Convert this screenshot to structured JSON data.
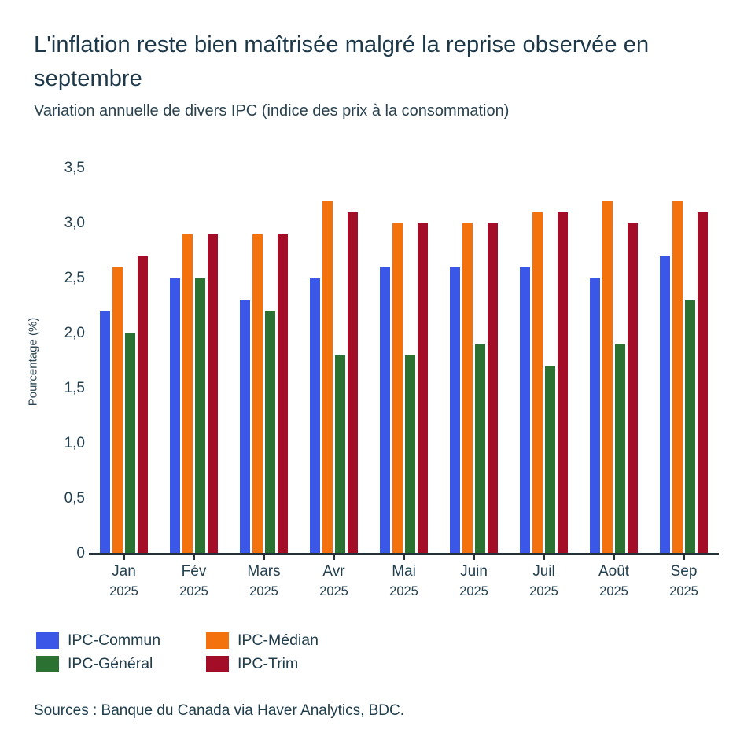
{
  "chart_data": {
    "type": "bar",
    "title": "L'inflation reste bien maîtrisée malgré la reprise observée en septembre",
    "subtitle": "Variation annuelle de divers IPC (indice des prix à la consommation)",
    "xlabel": "",
    "ylabel": "Pourcentage (%)",
    "ylim": [
      0,
      3.5
    ],
    "grid": false,
    "legend_position": "bottom-left",
    "decimal_format": "comma",
    "y_tick_labels": [
      "0",
      "0,5",
      "1,0",
      "1,5",
      "2,0",
      "2,5",
      "3,0",
      "3,5"
    ],
    "categories": [
      "Jan",
      "Fév",
      "Mars",
      "Avr",
      "Mai",
      "Juin",
      "Juil",
      "Août",
      "Sep"
    ],
    "category_year": "2025",
    "series": [
      {
        "name": "IPC-Commun",
        "color": "#3a57e8",
        "values": [
          2.2,
          2.5,
          2.3,
          2.5,
          2.6,
          2.6,
          2.6,
          2.5,
          2.7
        ]
      },
      {
        "name": "IPC-Médian",
        "color": "#f4720e",
        "values": [
          2.6,
          2.9,
          2.9,
          3.2,
          3.0,
          3.0,
          3.1,
          3.2,
          3.2
        ]
      },
      {
        "name": "IPC-Général",
        "color": "#2b7132",
        "values": [
          2.0,
          2.5,
          2.2,
          1.8,
          1.8,
          1.9,
          1.7,
          1.9,
          2.3
        ]
      },
      {
        "name": "IPC-Trim",
        "color": "#a30d27",
        "values": [
          2.7,
          2.9,
          2.9,
          3.1,
          3.0,
          3.0,
          3.1,
          3.0,
          3.1
        ]
      }
    ]
  },
  "footer": {
    "source": "Sources : Banque du Canada via Haver Analytics, BDC."
  }
}
